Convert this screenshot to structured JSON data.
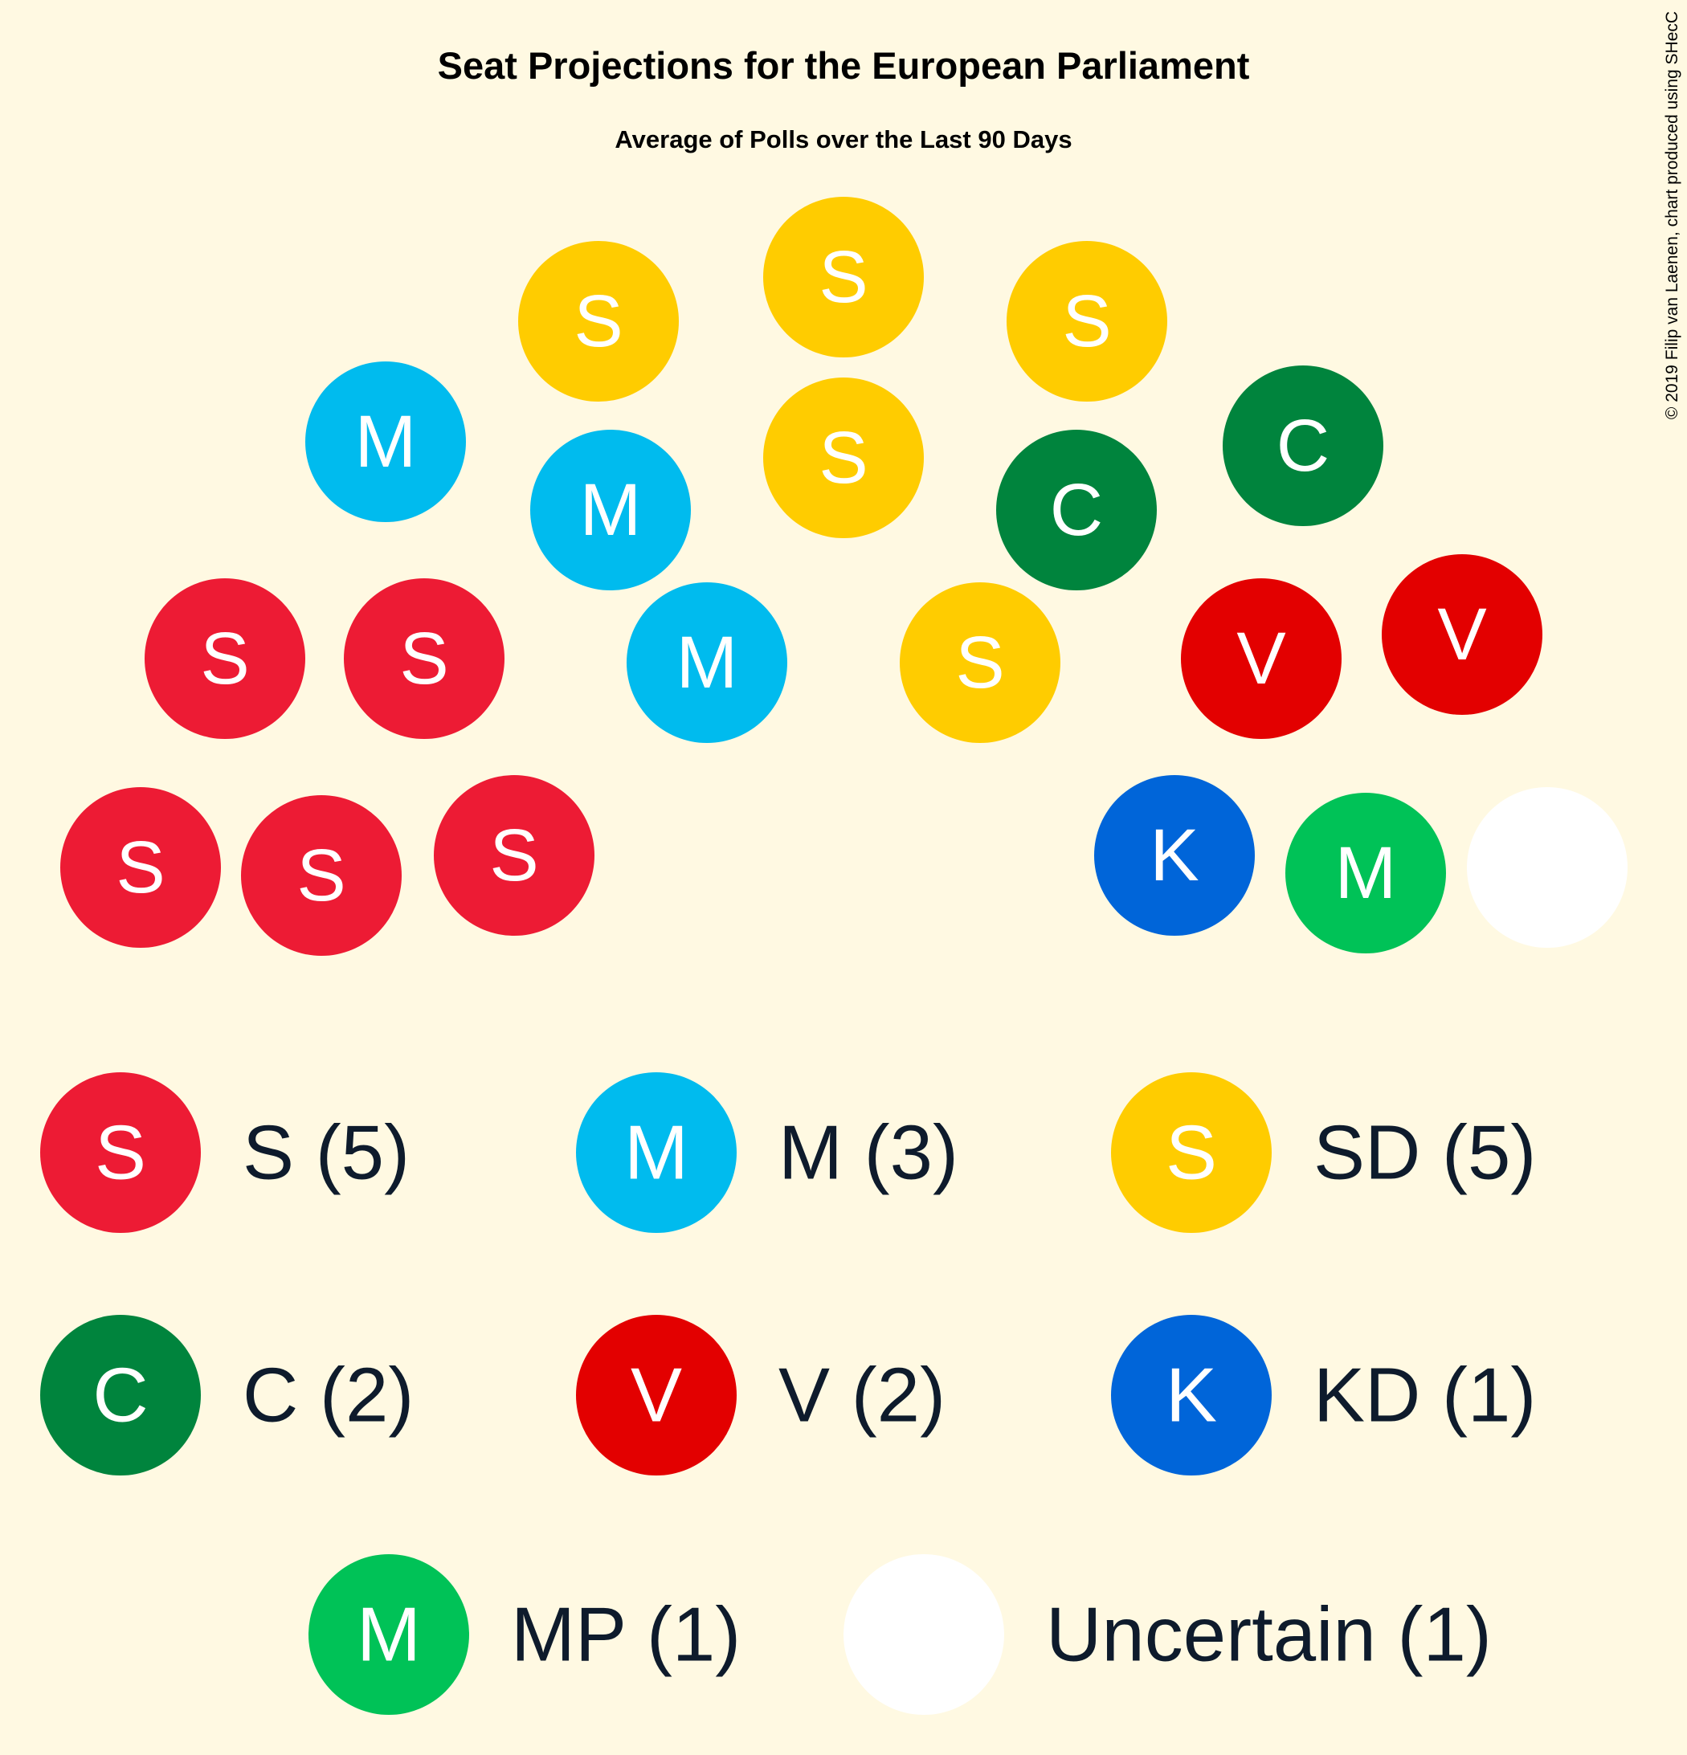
{
  "chart_data": {
    "type": "parliament",
    "title": "Seat Projections for the European Parliament",
    "subtitle": "Average of Polls over the Last 90 Days",
    "credit": "© 2019 Filip van Laenen, chart produced using SHecC",
    "parties": [
      {
        "id": "S",
        "letter": "S",
        "label": "S (5)",
        "seats": 5,
        "color": "#ED1B34"
      },
      {
        "id": "M",
        "letter": "M",
        "label": "M (3)",
        "seats": 3,
        "color": "#00BBEE"
      },
      {
        "id": "SD",
        "letter": "S",
        "label": "SD (5)",
        "seats": 5,
        "color": "#FFCC00"
      },
      {
        "id": "C",
        "letter": "C",
        "label": "C (2)",
        "seats": 2,
        "color": "#00843D"
      },
      {
        "id": "V",
        "letter": "V",
        "label": "V (2)",
        "seats": 2,
        "color": "#E30000"
      },
      {
        "id": "KD",
        "letter": "K",
        "label": "KD (1)",
        "seats": 1,
        "color": "#0065D9"
      },
      {
        "id": "MP",
        "letter": "M",
        "label": "MP (1)",
        "seats": 1,
        "color": "#00C257"
      },
      {
        "id": "UNC",
        "letter": "",
        "label": "Uncertain (1)",
        "seats": 1,
        "color": "#FFFFFF"
      }
    ],
    "seat_order": [
      "S",
      "S",
      "S",
      "S",
      "S",
      "M",
      "M",
      "M",
      "SD",
      "SD",
      "SD",
      "SD",
      "SD",
      "C",
      "C",
      "V",
      "V",
      "KD",
      "MP",
      "UNC"
    ]
  }
}
